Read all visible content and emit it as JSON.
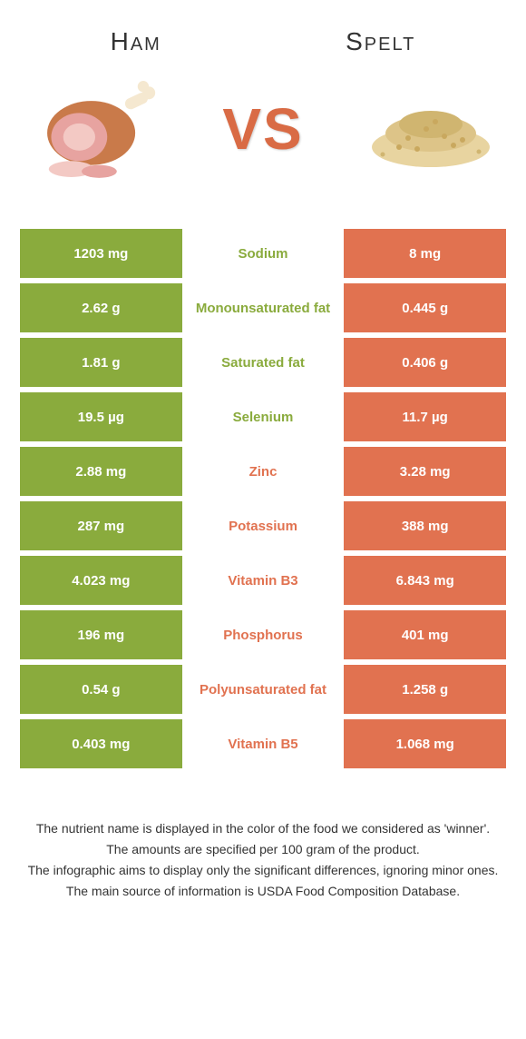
{
  "header": {
    "left_title": "Ham",
    "right_title": "Spelt",
    "vs_label": "VS"
  },
  "colors": {
    "left": "#8aab3d",
    "right": "#e17250",
    "left_text": "#8aab3d",
    "right_text": "#e17250",
    "white": "#ffffff"
  },
  "rows": [
    {
      "left": "1203 mg",
      "mid": "Sodium",
      "right": "8 mg",
      "winner": "left"
    },
    {
      "left": "2.62 g",
      "mid": "Monounsaturated fat",
      "right": "0.445 g",
      "winner": "left"
    },
    {
      "left": "1.81 g",
      "mid": "Saturated fat",
      "right": "0.406 g",
      "winner": "left"
    },
    {
      "left": "19.5 µg",
      "mid": "Selenium",
      "right": "11.7 µg",
      "winner": "left"
    },
    {
      "left": "2.88 mg",
      "mid": "Zinc",
      "right": "3.28 mg",
      "winner": "right"
    },
    {
      "left": "287 mg",
      "mid": "Potassium",
      "right": "388 mg",
      "winner": "right"
    },
    {
      "left": "4.023 mg",
      "mid": "Vitamin B3",
      "right": "6.843 mg",
      "winner": "right"
    },
    {
      "left": "196 mg",
      "mid": "Phosphorus",
      "right": "401 mg",
      "winner": "right"
    },
    {
      "left": "0.54 g",
      "mid": "Polyunsaturated fat",
      "right": "1.258 g",
      "winner": "right"
    },
    {
      "left": "0.403 mg",
      "mid": "Vitamin B5",
      "right": "1.068 mg",
      "winner": "right"
    }
  ],
  "footer": {
    "line1": "The nutrient name is displayed in the color of the food we considered as 'winner'.",
    "line2": "The amounts are specified per 100 gram of the product.",
    "line3": "The infographic aims to display only the significant differences, ignoring minor ones.",
    "line4": "The main source of information is USDA Food Composition Database."
  }
}
